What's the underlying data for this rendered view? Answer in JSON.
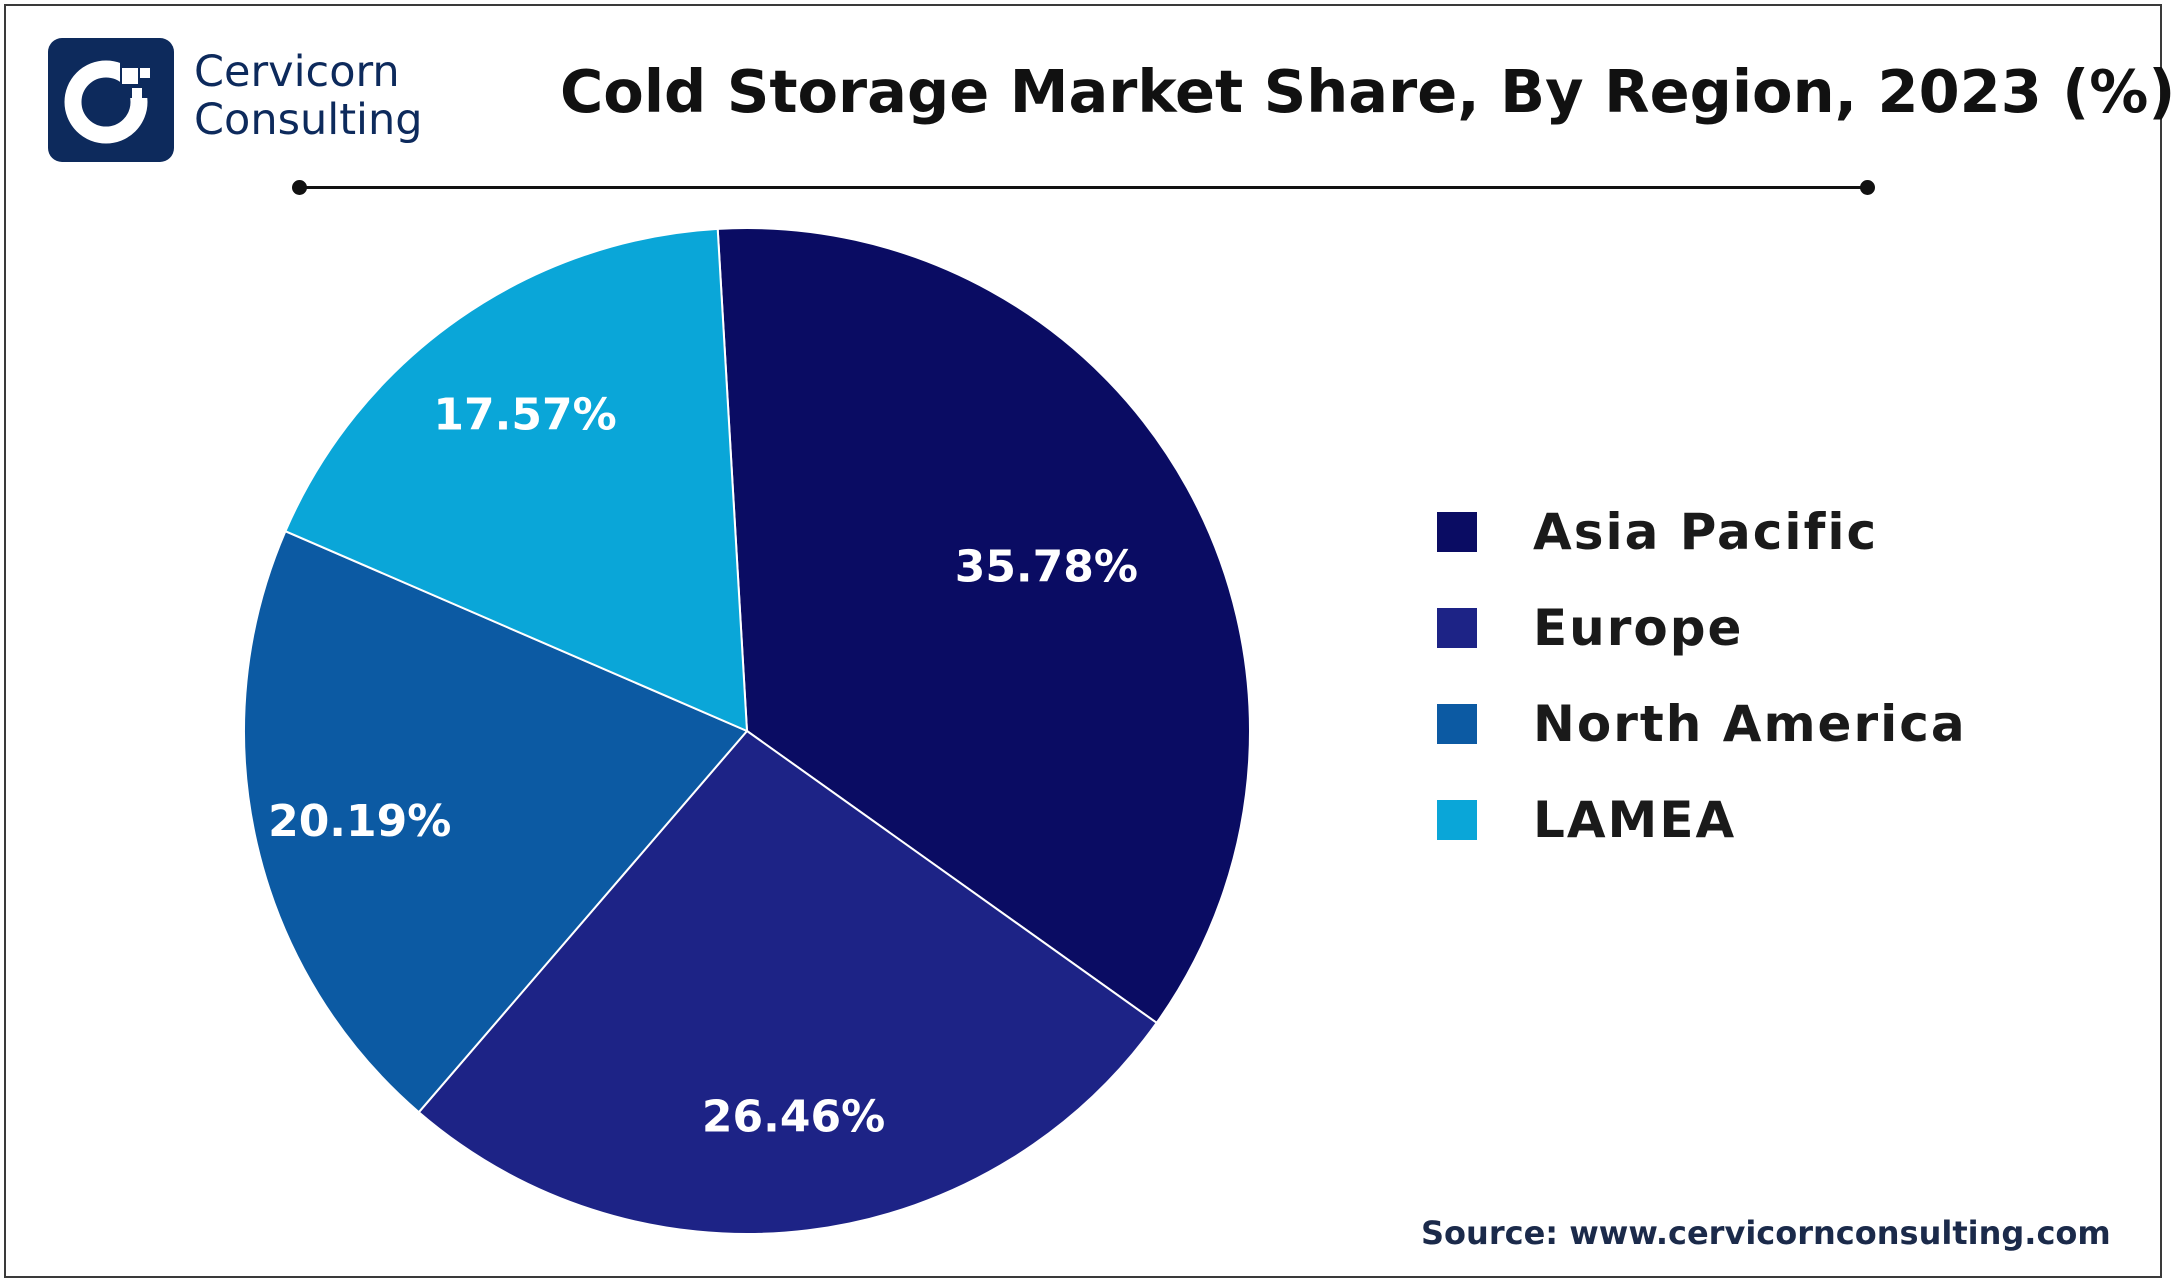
{
  "brand": {
    "line1": "Cervicorn",
    "line2": "Consulting"
  },
  "chart_data": {
    "type": "pie",
    "title": "Cold Storage Market Share, By Region, 2023 (%)",
    "categories": [
      "Asia Pacific",
      "Europe",
      "North America",
      "LAMEA"
    ],
    "values": [
      35.78,
      26.46,
      20.19,
      17.57
    ],
    "data_labels": [
      "35.78%",
      "26.46%",
      "20.19%",
      "17.57%"
    ],
    "colors": [
      "#0a0c63",
      "#1d2386",
      "#0c5aa3",
      "#0aa6d8"
    ],
    "legend_position": "right"
  },
  "source": {
    "label": "Source:",
    "url": "www.cervicornconsulting.com"
  }
}
